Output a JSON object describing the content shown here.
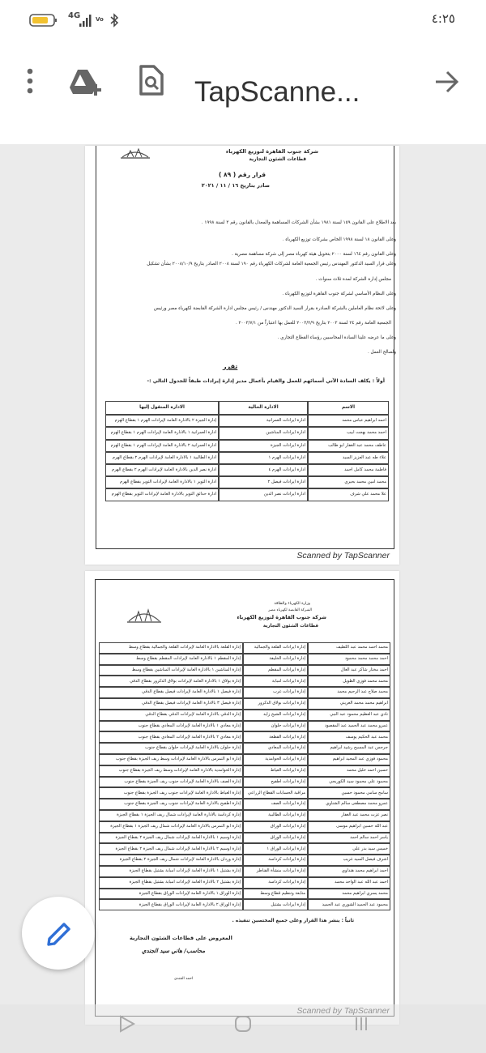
{
  "status_bar": {
    "network": "4G",
    "time": "٤:٢٥"
  },
  "toolbar": {
    "title": "TapScanne..."
  },
  "pages": [
    {
      "header": {
        "company": "شركة جنوب القاهرة لتوزيع الكهرباء",
        "sector": "قطاعات الشئون التجارية",
        "decision": "قرار رقم ( ٨٩ )",
        "date": "صادر بتاريخ ١٦ / ١١ / ٢٠٢١"
      },
      "clauses": [
        "بعد الاطلاع على القانون ١٥٩ لسنة ١٩٨١ بشأن الشركات المساهمة والمعدل بالقانون رقم ٣ لسنة ١٩٩٨ .",
        "وعلى القانون ١٨ لسنة ١٩٩٨ الخاص بشركات توزيع الكهرباء .",
        "وعلى القانون رقم ١٦٤ لسنة ٢٠٠٠ بتحويل هيئة كهرباء مصر إلى شركة مساهمة مصرية .",
        "وعلى قرار السيد الدكتور المهندس رئيس الجمعية العامة لشركات الكهرباء رقم ١٩٠ لسنة ٢٠٠٨ الصادر بتاريخ ٢٠٠٨/١٠/٩ بشأن تشكيل",
        "مجلس إدارة الشركة لمدة ثلاث سنوات .",
        "وعلى النظام الأساسي لشركة جنوب القاهرة لتوزيع الكهرباء .",
        "وعلى لائحة نظام العاملين بالشركة الصادرة بقرار السيد الدكتور مهندس / رئيس مجلس ادارة الشركة القابضة لكهرباء مصر ورئيس",
        "الجمعية العامة رقم ٢٤ لسنة ٢٠٠٣ بتاريخ ٢٠٠٣/٢/٩ للعمل بها اعتباراً من ٢٠٠٣/٧/١ .",
        "وعلى ما عرضه علينا السادة المحاسبين رؤساء القطاع التجاري .",
        "ولصالح العمل ."
      ],
      "resolution": "تقرر",
      "first": "أولاً : يكلف السادة الآتي أسمائهم للعمل والقيام بأعمال مدير إدارة إيرادات طبقاً للجدول التالي :-",
      "table": {
        "columns": [
          "الاسم",
          "الادارة الحالية",
          "الادارة المنقول إليها"
        ],
        "rows": [
          [
            "احمد ابراهيم عباس محمد",
            "ادارة ايرادات العمرانية",
            "إدارة الجيزة ٢ بالادارة العامة لإيرادات الهرم ١ بقطاع الهرم"
          ],
          [
            "احمد محمد بهجت ابيب",
            "ادارة ايرادات المناشين",
            "ادارة العمرانية ١ بالادارة العامة لإيرادات الهرم ١ بقطاع الهرم"
          ],
          [
            "عاطف محمد عبد الغفار ابو طالب",
            "ادارة ايرادات الجيزة",
            "ادارة العمرانية ٢ بالادارة العامة لإيرادات الهرم ١ بقطاع الهرم"
          ],
          [
            "علاء طه عبد العزيز السيد",
            "ادارة ايرادات الهرم ١",
            "ادارة الطالبية ١ بالادارة العامة لإيرادات الهرم ٢ بقطاع الهرم"
          ],
          [
            "فاطمة محمد كامل احمد",
            "ادارة ايرادات الهرم ٤",
            "ادارة نصر الدين بالادارة العامة لإيرادات الهرم ٢ بقطاع الهرم"
          ],
          [
            "محمد امين محمد بحيري",
            "ادارة ايرادات فيصل ٢",
            "ادارة التوير ١ بالادارة العامة لإيرادات التوير بقطاع الهرم"
          ],
          [
            "علا محمد علي شرف",
            "ادارة ايرادات نصر الدين",
            "ادارة حدائق التوير بالادارة العامة لإيرادات التوير بقطاع الهرم"
          ]
        ]
      },
      "footer": "Scanned by TapScanner"
    },
    {
      "header": {
        "ministry": "وزارة الكهرباء والطاقة",
        "holding": "الشركة القابضة لكهرباء مصر",
        "company": "شركة جنوب القاهرة لتوزيع الكهرباء",
        "sector": "قطاعات الشئون التجارية"
      },
      "table": {
        "rows": [
          [
            "محمد احمد محمد عبد اللطيف",
            "إدارة ايرادات القلعة والجمالية",
            "إدارة القلعة بالادارة العامة لإيرادات القلعة والجمالية بقطاع وسط"
          ],
          [
            "احمد محمد محمد محمود",
            "إدارة ايرادات الخليفة",
            "إدارة المقطم ١ بالادارة العامة لإيرادات المقطم بقطاع وسط"
          ],
          [
            "احمد مختار شاكر عبد العال",
            "إدارة ايرادات المقطم",
            "إدارة المناشين ١ بالادارة العامة لإيرادات المناشين بقطاع وسط"
          ],
          [
            "محمد محمد فوزي الطويل",
            "إدارة ايرادات امبابة",
            "إدارة بولاق ١ بالادارة العامة لإيرادات بولاق الدكرور بقطاع الدقي"
          ],
          [
            "محمد صلاح عبد الرحيم محمد",
            "إدارة ايرادات غرب",
            "إدارة فيصل ١ بالادارة العامة لإيرادات فيصل بقطاع الدقي"
          ],
          [
            "ابراهيم محمد محمد العريني",
            "إدارة ايرادات بولاق الدكرور",
            "إدارة فيصل ٣ بالادارة العامة لإيرادات فيصل بقطاع الدقي"
          ],
          [
            "نادي عبد العظيم محمود عبد النبي",
            "إدارة ايرادات الشيخ زايد",
            "إدارة الدقي بالادارة العامة لإيرادات الدقي بقطاع الدقي"
          ],
          [
            "عمرو محمد عبد الحميد عبد المقصود",
            "إدارة ايرادات حلوان",
            "إدارة معادي ١ بالادارة العامة لإيرادات المعادي بقطاع جنوب"
          ],
          [
            "محمد عبد الحكيم يوسف",
            "إدارة ايرادات القطعة",
            "إدارة معادي ٢ بالادارة العامة لإيرادات المعادي بقطاع جنوب"
          ],
          [
            "جرجس عبد المسيح رشيد ابراهيم",
            "إدارة ايرادات المعادي",
            "إدارة حلوان بالادارة العامة لإيرادات حلوان بقطاع جنوب"
          ],
          [
            "محمود فوزي عبد المجيد ابراهيم",
            "إدارة ايرادات الحوامدية",
            "إدارة ابو النمرس بالادارة العامة لإيرادات وسط ريف الجيزة بقطاع جنوب"
          ],
          [
            "حسين احمد خليل محمد",
            "إدارة ايرادات العياط",
            "إدارة الحوامدية بالادارة العامة لإيرادات وسط ريف الجيزة بقطاع جنوب"
          ],
          [
            "محمود علي محمود سيد الكوريجي",
            "إدارة ايرادات اطفيح",
            "إدارة الصف بالادارة العامة لإيرادات جنوب ريف الجيزة بقطاع جنوب"
          ],
          [
            "سامح سامي محمود حسين",
            "مراقبة الحسابات القطاع الزراعي",
            "إدارة العياط بالادارة العامة لإيرادات جنوب ريف الجيزة بقطاع جنوب"
          ],
          [
            "عمرو محمد مصطفى سالم الشناوي",
            "إدارة ايرادات الصف",
            "إدارة اطفيح بالادارة العامة لإيرادات جنوب ريف الجيزة بقطاع جنوب"
          ],
          [
            "نصر عزت محمد عبد الغفار",
            "إدارة ايرادات الطالبية",
            "إدارة كرداسة بالادارة العامة لإيرادات شمال ريف الجيزة ١ بقطاع الجيزة"
          ],
          [
            "عبد الله حسين ابراهيم موسى",
            "إدارة ايرادات الوراق",
            "إدارة ابو النمرس بالادارة العامة لإيرادات شمال ريف الجيزة ١ بقطاع الجيزة"
          ],
          [
            "ياسر احمد سالم احمد",
            "إدارة ايرادات الوراق",
            "إدارة اوسيم ١ بالادارة العامة لإيرادات شمال ريف الجيزة ٢ بقطاع الجيزة"
          ],
          [
            "خميس سيد بدر علي",
            "إدارة ايرادات الوراق ١",
            "إدارة اوسيم ٢ بالادارة العامة لإيرادات شمال ريف الجيزة ٢ بقطاع الجيزة"
          ],
          [
            "اشرف فيصل السيد غريب",
            "إدارة ايرادات كرداسة",
            "إدارة وردان بالادارة العامة لإيرادات شمال ريف الجيزة ٢ بقطاع الجيزة"
          ],
          [
            "احمد ابراهيم محمد هنداوي",
            "إدارة ايرادات منشأة القناطر",
            "إدارة بشتيل ١ بالادارة العامة لإيرادات امبابة بشتيل بقطاع الجيزة"
          ],
          [
            "احمد عبد الله عبد الواحد محمد",
            "إدارة ايرادات كرداسة",
            "إدارة بشتيل ٢ بالادارة العامة لإيرادات امبابة بشتيل بقطاع الجيزة"
          ],
          [
            "محمد يسري ابراهيم محمد",
            "متابعة وتنظيم قطاع وسط",
            "إدارة الوراق ١ بالادارة العامة لإيرادات الوراق بقطاع الجيزة"
          ],
          [
            "محمود عبد الحميد الشوري عبد الحميد",
            "إدارة ايرادات بشتيل",
            "إدارة الوراق ٢ بالادارة العامة لإيرادات الوراق بقطاع الجيزة"
          ]
        ]
      },
      "second": "ثانياً : ينشر هذا القرار وعلى جميع المختصين تنفيذه .",
      "signature": {
        "title": "المعروض على قطاعات الشئون التجارية",
        "name": "محاسب/ هاني سيد الجندي",
        "initials": "احمد الجندي"
      },
      "footer": "Scanned by TapScanner"
    }
  ]
}
